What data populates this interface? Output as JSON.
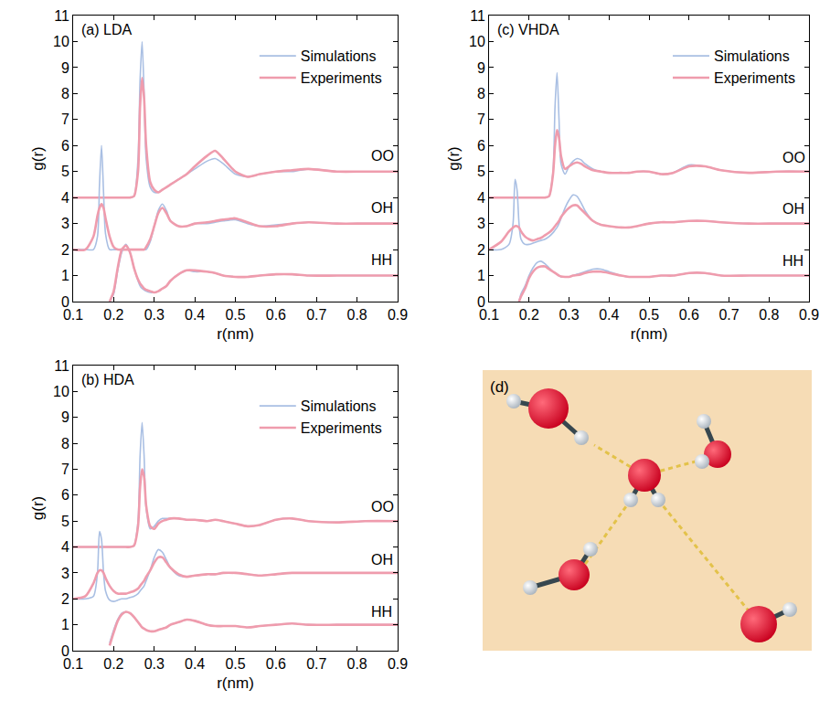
{
  "chart_data": [
    {
      "type": "line",
      "title": "(a) LDA",
      "xlabel": "r(nm)",
      "ylabel": "g(r)",
      "x": [
        0.1,
        0.13,
        0.15,
        0.16,
        0.165,
        0.17,
        0.175,
        0.18,
        0.19,
        0.2,
        0.21,
        0.22,
        0.23,
        0.24,
        0.25,
        0.26,
        0.265,
        0.27,
        0.275,
        0.28,
        0.29,
        0.3,
        0.31,
        0.32,
        0.33,
        0.34,
        0.36,
        0.38,
        0.4,
        0.43,
        0.45,
        0.47,
        0.5,
        0.53,
        0.56,
        0.6,
        0.64,
        0.68,
        0.75,
        0.82,
        0.9
      ],
      "xlim": [
        0.1,
        0.9
      ],
      "xticks": [
        0.1,
        0.2,
        0.3,
        0.4,
        0.5,
        0.6,
        0.7,
        0.8,
        0.9
      ],
      "ylim": [
        0,
        11
      ],
      "yticks": [
        0,
        1,
        2,
        3,
        4,
        5,
        6,
        7,
        8,
        9,
        10,
        11
      ],
      "legend": "top right",
      "grid": false,
      "annotations": [
        {
          "text": "OO",
          "x": 0.83,
          "y": 5.6
        },
        {
          "text": "OH",
          "x": 0.83,
          "y": 3.6
        },
        {
          "text": "HH",
          "x": 0.83,
          "y": 1.6
        }
      ],
      "series": [
        {
          "name": "Simulations",
          "color": "#a9bfe3",
          "values": [
            4,
            4,
            4,
            4,
            4,
            4,
            4,
            4,
            4,
            4,
            4,
            4,
            4,
            4,
            4.05,
            5.5,
            8.5,
            10,
            8,
            5.5,
            4.4,
            4.2,
            4.2,
            4.3,
            4.4,
            4.5,
            4.7,
            4.9,
            5.1,
            5.4,
            5.5,
            5.3,
            4.9,
            4.8,
            4.9,
            5.0,
            5.0,
            5.1,
            5.0,
            5.0,
            5.0
          ]
        },
        {
          "name": "Experiments",
          "color": "#ef9cad",
          "values": [
            4,
            4,
            4,
            4,
            4,
            4,
            4,
            4,
            4,
            4,
            4,
            4,
            4,
            4,
            4.05,
            5.0,
            7.5,
            8.6,
            7.8,
            6.0,
            4.6,
            4.3,
            4.2,
            4.3,
            4.4,
            4.5,
            4.7,
            4.9,
            5.2,
            5.6,
            5.8,
            5.5,
            5.0,
            4.8,
            4.9,
            5.0,
            5.05,
            5.1,
            5.0,
            5.0,
            5.0
          ]
        },
        {
          "name": "Simulations",
          "color": "#a9bfe3",
          "values": [
            2,
            2,
            2,
            2.5,
            4.5,
            6.0,
            4.2,
            2.6,
            2.0,
            2,
            2,
            2,
            2,
            2,
            2,
            2,
            2,
            2,
            2,
            2,
            2.3,
            2.9,
            3.5,
            3.75,
            3.5,
            3.1,
            2.9,
            2.9,
            3.0,
            3.0,
            3.05,
            3.1,
            3.15,
            3.0,
            2.9,
            2.95,
            3.0,
            3.05,
            3.0,
            3.0,
            3.0
          ]
        },
        {
          "name": "Experiments",
          "color": "#ef9cad",
          "values": [
            2.0,
            2.0,
            2.5,
            3.3,
            3.6,
            3.75,
            3.6,
            3.2,
            2.5,
            2.1,
            2,
            2,
            2,
            2,
            2,
            2,
            2,
            2,
            2,
            2.1,
            2.4,
            2.9,
            3.4,
            3.6,
            3.4,
            3.1,
            2.9,
            2.9,
            3.0,
            3.05,
            3.1,
            3.15,
            3.2,
            3.05,
            2.9,
            2.9,
            3.0,
            3.05,
            3.0,
            3.0,
            3.0
          ]
        },
        {
          "name": "Simulations",
          "color": "#a9bfe3",
          "values": [
            null,
            null,
            null,
            null,
            null,
            null,
            null,
            null,
            0.0,
            0.3,
            1.2,
            1.9,
            2.2,
            1.9,
            1.3,
            0.8,
            0.6,
            0.5,
            0.45,
            0.4,
            0.35,
            0.35,
            0.4,
            0.5,
            0.6,
            0.8,
            1.05,
            1.2,
            1.15,
            1.15,
            1.1,
            1.0,
            0.95,
            0.95,
            1.0,
            1.05,
            1.05,
            1.0,
            1.0,
            1.0,
            1.0
          ]
        },
        {
          "name": "Experiments",
          "color": "#ef9cad",
          "values": [
            null,
            null,
            null,
            null,
            null,
            null,
            null,
            null,
            0.0,
            0.4,
            1.3,
            2.0,
            2.15,
            1.9,
            1.3,
            0.85,
            0.7,
            0.6,
            0.5,
            0.45,
            0.4,
            0.35,
            0.4,
            0.5,
            0.6,
            0.8,
            1.05,
            1.2,
            1.2,
            1.15,
            1.1,
            1.0,
            0.95,
            0.95,
            1.0,
            1.05,
            1.05,
            1.0,
            1.0,
            1.0,
            1.0
          ]
        }
      ]
    },
    {
      "type": "line",
      "title": "(b) HDA",
      "xlabel": "r(nm)",
      "ylabel": "g(r)",
      "x": [
        0.1,
        0.13,
        0.15,
        0.16,
        0.165,
        0.17,
        0.175,
        0.18,
        0.19,
        0.2,
        0.21,
        0.22,
        0.23,
        0.24,
        0.25,
        0.26,
        0.265,
        0.27,
        0.275,
        0.28,
        0.29,
        0.3,
        0.31,
        0.32,
        0.33,
        0.34,
        0.36,
        0.38,
        0.4,
        0.43,
        0.45,
        0.47,
        0.5,
        0.53,
        0.56,
        0.6,
        0.64,
        0.68,
        0.75,
        0.82,
        0.9
      ],
      "xlim": [
        0.1,
        0.9
      ],
      "xticks": [
        0.1,
        0.2,
        0.3,
        0.4,
        0.5,
        0.6,
        0.7,
        0.8,
        0.9
      ],
      "ylim": [
        0,
        11
      ],
      "yticks": [
        0,
        1,
        2,
        3,
        4,
        5,
        6,
        7,
        8,
        9,
        10,
        11
      ],
      "legend": "top right",
      "grid": false,
      "annotations": [
        {
          "text": "OO",
          "x": 0.83,
          "y": 5.55
        },
        {
          "text": "OH",
          "x": 0.83,
          "y": 3.5
        },
        {
          "text": "HH",
          "x": 0.83,
          "y": 1.5
        }
      ],
      "series": [
        {
          "name": "Simulations",
          "color": "#a9bfe3",
          "values": [
            4,
            4,
            4,
            4,
            4,
            4,
            4,
            4,
            4,
            4,
            4,
            4,
            4,
            4,
            4.05,
            5.0,
            7.5,
            8.8,
            7.5,
            5.5,
            4.7,
            4.8,
            5.0,
            5.1,
            5.1,
            5.1,
            5.1,
            5.05,
            5.05,
            5.0,
            5.05,
            5.0,
            4.9,
            4.8,
            4.85,
            5.05,
            5.1,
            5.0,
            4.95,
            5.0,
            5.0
          ]
        },
        {
          "name": "Experiments",
          "color": "#ef9cad",
          "values": [
            4,
            4,
            4,
            4,
            4,
            4,
            4,
            4,
            4,
            4,
            4,
            4,
            4,
            4,
            4.05,
            4.8,
            6.3,
            7.0,
            6.7,
            5.6,
            4.8,
            4.7,
            4.9,
            5.0,
            5.05,
            5.1,
            5.1,
            5.05,
            5.05,
            5.0,
            5.05,
            5.0,
            4.9,
            4.8,
            4.85,
            5.05,
            5.1,
            5.0,
            4.95,
            5.0,
            5.0
          ]
        },
        {
          "name": "Simulations",
          "color": "#a9bfe3",
          "values": [
            2.0,
            2.0,
            2.1,
            3.0,
            4.6,
            4.3,
            3.0,
            2.3,
            1.95,
            1.9,
            1.95,
            2.0,
            2.0,
            2.05,
            2.1,
            2.2,
            2.3,
            2.4,
            2.5,
            2.7,
            3.1,
            3.6,
            3.9,
            3.8,
            3.5,
            3.2,
            2.9,
            2.85,
            2.9,
            2.95,
            2.95,
            3.0,
            3.0,
            2.95,
            2.9,
            2.95,
            3.0,
            3.0,
            3.0,
            3.0,
            3.0
          ]
        },
        {
          "name": "Experiments",
          "color": "#ef9cad",
          "values": [
            2.0,
            2.1,
            2.6,
            3.0,
            3.1,
            3.1,
            3.0,
            2.8,
            2.5,
            2.3,
            2.2,
            2.2,
            2.2,
            2.25,
            2.3,
            2.4,
            2.5,
            2.6,
            2.7,
            2.85,
            3.1,
            3.4,
            3.6,
            3.6,
            3.4,
            3.2,
            2.95,
            2.85,
            2.9,
            2.95,
            2.95,
            3.0,
            3.0,
            2.95,
            2.9,
            2.95,
            3.0,
            3.0,
            3.0,
            3.0,
            3.0
          ]
        },
        {
          "name": "Simulations",
          "color": "#a9bfe3",
          "values": [
            null,
            null,
            null,
            null,
            null,
            null,
            null,
            null,
            0.3,
            0.8,
            1.2,
            1.45,
            1.5,
            1.45,
            1.3,
            1.1,
            1.0,
            0.9,
            0.85,
            0.8,
            0.75,
            0.75,
            0.8,
            0.85,
            0.9,
            1.0,
            1.1,
            1.2,
            1.15,
            1.0,
            0.95,
            0.95,
            0.95,
            0.9,
            0.95,
            1.0,
            1.05,
            1.0,
            1.0,
            1.0,
            1.0
          ]
        },
        {
          "name": "Experiments",
          "color": "#ef9cad",
          "values": [
            null,
            null,
            null,
            null,
            null,
            null,
            null,
            null,
            0.2,
            0.7,
            1.15,
            1.4,
            1.5,
            1.45,
            1.3,
            1.1,
            1.0,
            0.9,
            0.85,
            0.8,
            0.75,
            0.75,
            0.8,
            0.85,
            0.9,
            1.0,
            1.1,
            1.2,
            1.15,
            1.0,
            0.95,
            0.95,
            0.95,
            0.9,
            0.95,
            1.0,
            1.05,
            1.0,
            1.0,
            1.0,
            1.0
          ]
        }
      ]
    },
    {
      "type": "line",
      "title": "(c) VHDA",
      "xlabel": "r(nm)",
      "ylabel": "g(r)",
      "x": [
        0.1,
        0.13,
        0.15,
        0.16,
        0.165,
        0.17,
        0.175,
        0.18,
        0.19,
        0.2,
        0.21,
        0.22,
        0.23,
        0.24,
        0.25,
        0.26,
        0.265,
        0.27,
        0.275,
        0.28,
        0.29,
        0.3,
        0.31,
        0.32,
        0.33,
        0.34,
        0.36,
        0.38,
        0.4,
        0.43,
        0.45,
        0.47,
        0.5,
        0.53,
        0.56,
        0.6,
        0.64,
        0.68,
        0.75,
        0.82,
        0.9
      ],
      "xlim": [
        0.1,
        0.9
      ],
      "xticks": [
        0.1,
        0.2,
        0.3,
        0.4,
        0.5,
        0.6,
        0.7,
        0.8,
        0.9
      ],
      "ylim": [
        0,
        11
      ],
      "yticks": [
        0,
        1,
        2,
        3,
        4,
        5,
        6,
        7,
        8,
        9,
        10,
        11
      ],
      "legend": "top right",
      "grid": false,
      "annotations": [
        {
          "text": "OO",
          "x": 0.83,
          "y": 5.55
        },
        {
          "text": "OH",
          "x": 0.83,
          "y": 3.55
        },
        {
          "text": "HH",
          "x": 0.83,
          "y": 1.55
        }
      ],
      "series": [
        {
          "name": "Simulations",
          "color": "#a9bfe3",
          "values": [
            4,
            4,
            4,
            4,
            4,
            4,
            4,
            4,
            4,
            4,
            4,
            4,
            4,
            4,
            4.05,
            5.0,
            7.5,
            8.8,
            7.0,
            5.3,
            4.9,
            5.2,
            5.4,
            5.5,
            5.45,
            5.3,
            5.1,
            5.0,
            4.95,
            4.95,
            4.95,
            5.0,
            5.0,
            4.9,
            4.95,
            5.25,
            5.2,
            5.05,
            4.95,
            5.0,
            5.0
          ]
        },
        {
          "name": "Experiments",
          "color": "#ef9cad",
          "values": [
            4,
            4,
            4,
            4,
            4,
            4,
            4,
            4,
            4,
            4,
            4,
            4,
            4,
            4,
            4.05,
            4.9,
            6.0,
            6.6,
            6.3,
            5.6,
            5.1,
            5.2,
            5.3,
            5.35,
            5.3,
            5.2,
            5.05,
            5.0,
            4.95,
            4.95,
            4.95,
            5.0,
            5.0,
            4.9,
            4.95,
            5.2,
            5.2,
            5.05,
            4.95,
            5.0,
            5.0
          ]
        },
        {
          "name": "Simulations",
          "color": "#a9bfe3",
          "values": [
            2.0,
            2.0,
            2.2,
            3.0,
            4.7,
            4.3,
            3.0,
            2.4,
            2.2,
            2.2,
            2.25,
            2.3,
            2.35,
            2.4,
            2.5,
            2.65,
            2.75,
            2.85,
            3.0,
            3.2,
            3.6,
            3.9,
            4.1,
            4.05,
            3.8,
            3.5,
            3.1,
            2.95,
            2.9,
            2.85,
            2.85,
            2.9,
            3.0,
            3.05,
            3.05,
            3.1,
            3.1,
            3.05,
            3.0,
            3.0,
            3.0
          ]
        },
        {
          "name": "Experiments",
          "color": "#ef9cad",
          "values": [
            2.0,
            2.3,
            2.7,
            2.85,
            2.9,
            2.9,
            2.85,
            2.7,
            2.5,
            2.4,
            2.35,
            2.4,
            2.45,
            2.55,
            2.65,
            2.8,
            2.9,
            3.0,
            3.1,
            3.25,
            3.45,
            3.6,
            3.7,
            3.7,
            3.55,
            3.4,
            3.1,
            2.95,
            2.9,
            2.85,
            2.85,
            2.9,
            3.0,
            3.05,
            3.05,
            3.1,
            3.1,
            3.05,
            3.0,
            3.0,
            3.0
          ]
        },
        {
          "name": "Simulations",
          "color": "#a9bfe3",
          "values": [
            null,
            null,
            null,
            null,
            null,
            null,
            0.0,
            0.3,
            0.6,
            1.0,
            1.3,
            1.5,
            1.55,
            1.45,
            1.3,
            1.15,
            1.1,
            1.05,
            1.0,
            0.95,
            0.95,
            0.95,
            1.0,
            1.05,
            1.1,
            1.15,
            1.25,
            1.25,
            1.15,
            1.0,
            0.95,
            0.95,
            0.95,
            1.0,
            1.0,
            1.1,
            1.1,
            1.0,
            1.0,
            1.0,
            1.0
          ]
        },
        {
          "name": "Experiments",
          "color": "#ef9cad",
          "values": [
            null,
            null,
            null,
            null,
            null,
            null,
            0.0,
            0.2,
            0.5,
            0.9,
            1.15,
            1.3,
            1.35,
            1.35,
            1.25,
            1.15,
            1.1,
            1.05,
            1.0,
            0.97,
            0.95,
            0.95,
            1.0,
            1.02,
            1.05,
            1.1,
            1.15,
            1.15,
            1.1,
            1.0,
            0.95,
            0.95,
            0.95,
            1.0,
            1.0,
            1.1,
            1.1,
            1.0,
            1.0,
            1.0,
            1.0
          ]
        }
      ]
    }
  ],
  "image_panel": {
    "label": "(d)"
  }
}
